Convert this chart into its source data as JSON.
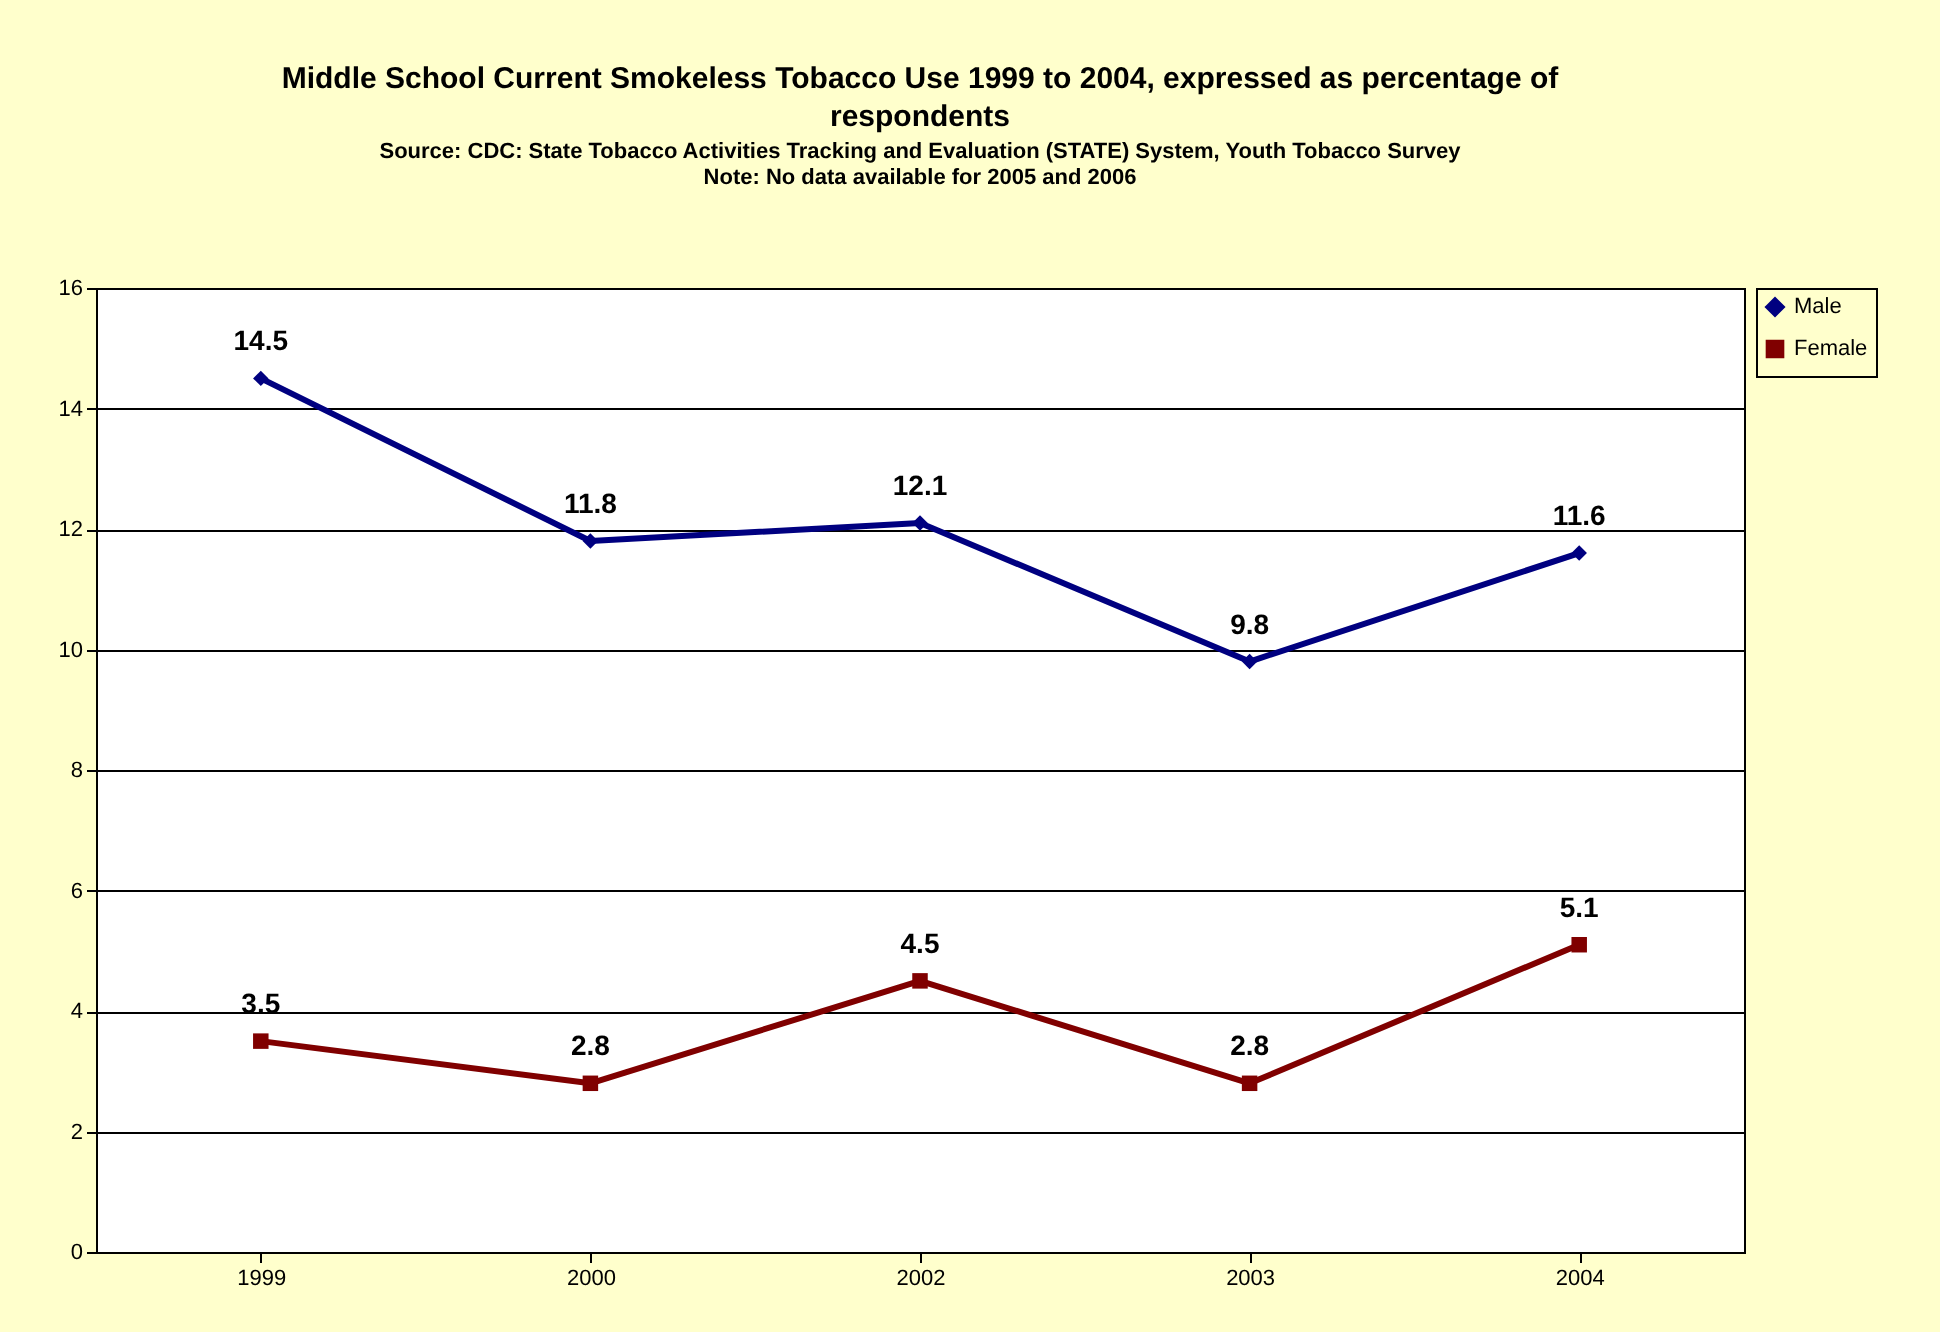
{
  "chart_data": {
    "type": "line",
    "title": "Middle School Current Smokeless Tobacco Use 1999 to 2004, expressed as percentage of respondents",
    "subtitle": "Source: CDC: State Tobacco Activities Tracking and Evaluation (STATE) System, Youth Tobacco Survey",
    "annotations": [
      "Note: No data available for 2005 and 2006"
    ],
    "categories": [
      "1999",
      "2000",
      "2002",
      "2003",
      "2004"
    ],
    "series": [
      {
        "name": "Male",
        "color": "#000080",
        "values": [
          14.5,
          11.8,
          12.1,
          9.8,
          11.6
        ],
        "marker": "diamond"
      },
      {
        "name": "Female",
        "color": "#800000",
        "values": [
          3.5,
          2.8,
          4.5,
          2.8,
          5.1
        ],
        "marker": "square"
      }
    ],
    "ylim": [
      0,
      16
    ],
    "yticks": [
      0,
      2,
      4,
      6,
      8,
      10,
      12,
      14,
      16
    ],
    "grid": "y",
    "legend": "right",
    "data_labels": true,
    "line_style": "solid"
  }
}
